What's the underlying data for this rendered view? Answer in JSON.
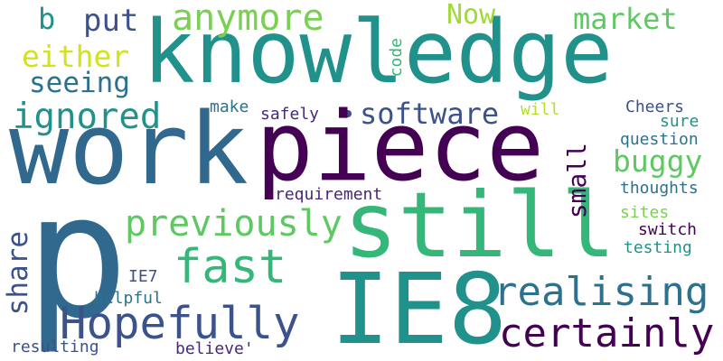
{
  "words": [
    {
      "key": "knowledge",
      "text": "knowledge",
      "color": "#21918c"
    },
    {
      "key": "work",
      "text": "work",
      "color": "#31688e"
    },
    {
      "key": "piece",
      "text": "piece",
      "color": "#440154"
    },
    {
      "key": "p",
      "text": "p",
      "color": "#31688e"
    },
    {
      "key": "still",
      "text": "still",
      "color": "#35b779"
    },
    {
      "key": "ie8",
      "text": "IE8",
      "color": "#21918c"
    },
    {
      "key": "hopefully",
      "text": "Hopefully",
      "color": "#3b528b"
    },
    {
      "key": "realising",
      "text": "realising",
      "color": "#2c728e"
    },
    {
      "key": "certainly",
      "text": "certainly",
      "color": "#440154"
    },
    {
      "key": "fast",
      "text": "fast",
      "color": "#35b779"
    },
    {
      "key": "previously",
      "text": "previously",
      "color": "#5ec962"
    },
    {
      "key": "software",
      "text": "software",
      "color": "#3b528b"
    },
    {
      "key": "ignored",
      "text": "ignored",
      "color": "#21918c"
    },
    {
      "key": "anymore",
      "text": "anymore",
      "color": "#7ad151"
    },
    {
      "key": "either",
      "text": "either",
      "color": "#d2e21b"
    },
    {
      "key": "seeing",
      "text": "seeing",
      "color": "#2c728e"
    },
    {
      "key": "b",
      "text": "b",
      "color": "#21918c"
    },
    {
      "key": "put",
      "text": "put",
      "color": "#3b528b"
    },
    {
      "key": "now",
      "text": "Now",
      "color": "#a0da39"
    },
    {
      "key": "market",
      "text": "market",
      "color": "#5ec962"
    },
    {
      "key": "buggy",
      "text": "buggy",
      "color": "#5ec962"
    },
    {
      "key": "small",
      "text": "small",
      "color": "#440154"
    },
    {
      "key": "share",
      "text": "share",
      "color": "#3b528b"
    },
    {
      "key": "code",
      "text": "code",
      "color": "#35b779"
    },
    {
      "key": "make",
      "text": "make",
      "color": "#2c728e"
    },
    {
      "key": "safely",
      "text": "safely",
      "color": "#482878"
    },
    {
      "key": "will",
      "text": "will",
      "color": "#b5de2b"
    },
    {
      "key": "cheers",
      "text": "Cheers",
      "color": "#3b528b"
    },
    {
      "key": "sure",
      "text": "sure",
      "color": "#21918c"
    },
    {
      "key": "question",
      "text": "question",
      "color": "#2c728e"
    },
    {
      "key": "requirement",
      "text": "requirement",
      "color": "#482878"
    },
    {
      "key": "thoughts",
      "text": "thoughts",
      "color": "#2c728e"
    },
    {
      "key": "sites",
      "text": "sites",
      "color": "#7ad151"
    },
    {
      "key": "switch",
      "text": "switch",
      "color": "#440154"
    },
    {
      "key": "testing",
      "text": "testing",
      "color": "#21918c"
    },
    {
      "key": "ie7",
      "text": "IE7",
      "color": "#3b528b"
    },
    {
      "key": "helpful",
      "text": "helpful",
      "color": "#2c728e"
    },
    {
      "key": "resulting",
      "text": "resulting",
      "color": "#3b528b"
    },
    {
      "key": "believe",
      "text": "believe'",
      "color": "#482878"
    }
  ]
}
